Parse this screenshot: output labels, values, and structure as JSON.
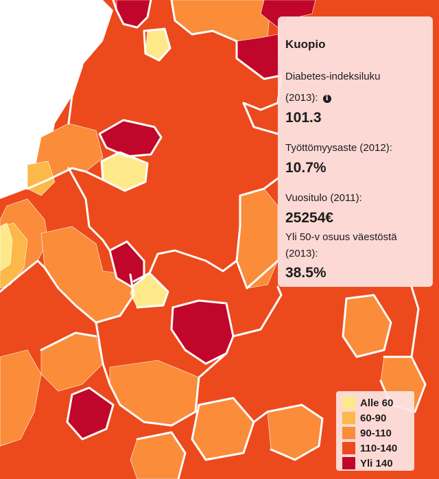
{
  "tooltip": {
    "title": "Kuopio",
    "rows": [
      {
        "label": "Diabetes-indeksiluku",
        "label_line2": "(2013):",
        "value": "101.3"
      },
      {
        "label": "Työttömyysaste (2012):",
        "value": "10.7%"
      },
      {
        "label": "Vuositulo (2011):",
        "value": "25254€"
      },
      {
        "label": "Yli 50-v osuus väestöstä",
        "label_line2": "(2013):",
        "value": "38.5%"
      }
    ],
    "info_icon": "info-icon"
  },
  "legend": {
    "items": [
      {
        "label": "Alle 60",
        "color": "#fee98a"
      },
      {
        "label": "60-90",
        "color": "#fdb84a"
      },
      {
        "label": "90-110",
        "color": "#fa8c3a"
      },
      {
        "label": "110-140",
        "color": "#ec4a1c"
      },
      {
        "label": "Yli 140",
        "color": "#c0062a"
      }
    ]
  },
  "map": {
    "water_color": "#ffffff",
    "base_color": "#ec4a1c",
    "border_color": "#ffffff"
  }
}
